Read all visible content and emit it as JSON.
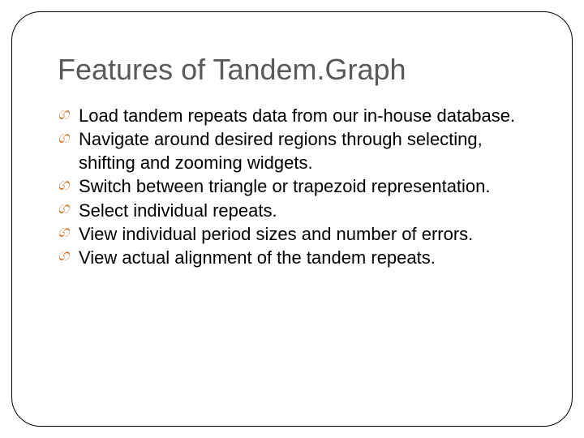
{
  "slide": {
    "title": "Features of Tandem.Graph",
    "title_color": "#595959",
    "title_fontsize": 36,
    "body_fontsize": 22,
    "body_color": "#000000",
    "bullet_color": "#cf7b32",
    "bullet_glyph": "ශ",
    "border_color": "#000000",
    "border_radius": 36,
    "background_color": "#ffffff",
    "bullets": [
      "Load tandem repeats data from our in-house database.",
      "Navigate around desired regions through selecting,  shifting and zooming widgets.",
      "Switch between triangle or trapezoid representation.",
      "Select individual repeats.",
      "View individual period sizes and number of errors.",
      "View actual alignment of the tandem repeats."
    ]
  }
}
